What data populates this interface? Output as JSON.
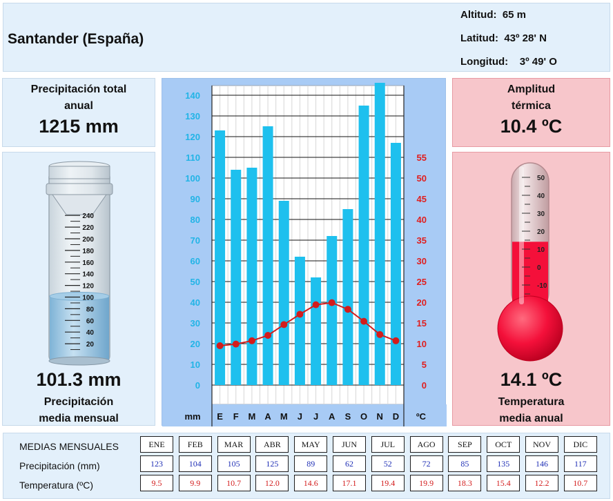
{
  "station": {
    "name": "Santander (España)",
    "altitude": "Altitud:  65 m",
    "latitude": "Latitud:  43º 28' N",
    "longitude": "Longitud:    3º 49' O"
  },
  "precip_total": {
    "title_line1": "Precipitación total",
    "title_line2": "anual",
    "value": "1215 mm"
  },
  "precip_mean": {
    "value": "101.3 mm",
    "label_line1": "Precipitación",
    "label_line2": "media mensual",
    "gauge_ticks": [
      "240",
      "220",
      "200",
      "180",
      "160",
      "140",
      "120",
      "100",
      "80",
      "60",
      "40",
      "20"
    ],
    "fill_value_mm": 101.3
  },
  "amplitude": {
    "title_line1": "Amplitud",
    "title_line2": "térmica",
    "value": "10.4 ºC"
  },
  "temp_mean": {
    "value": "14.1 ºC",
    "label_line1": "Temperatura",
    "label_line2": "media anual",
    "thermo_ticks": [
      "50",
      "40",
      "30",
      "20",
      "10",
      "0",
      "-10"
    ],
    "fill_value_c": 14.1
  },
  "colors": {
    "bar": "#1ec0ee",
    "line": "#d31c1c",
    "left_axis": "#22b4e6",
    "right_axis": "#e01e1e",
    "thermo_fill": "#f4103a"
  },
  "chart_data": {
    "type": "bar",
    "categories": [
      "E",
      "F",
      "M",
      "A",
      "M",
      "J",
      "J",
      "A",
      "S",
      "O",
      "N",
      "D"
    ],
    "series": [
      {
        "values": [
          123,
          104,
          105,
          125,
          89,
          62,
          52,
          72,
          85,
          135,
          146,
          117
        ]
      },
      {
        "values": [
          9.5,
          9.9,
          10.7,
          12.0,
          14.6,
          17.1,
          19.4,
          19.9,
          18.3,
          15.4,
          12.2,
          10.7
        ]
      }
    ],
    "ylabel": "mm",
    "y2label": "ºC",
    "ylim": [
      0,
      145
    ],
    "y2lim": [
      0,
      72.5
    ],
    "yticks": [
      "0",
      "10",
      "20",
      "30",
      "40",
      "50",
      "60",
      "70",
      "80",
      "90",
      "100",
      "110",
      "120",
      "130",
      "140"
    ],
    "y2ticks": [
      "0",
      "5",
      "10",
      "15",
      "20",
      "25",
      "30",
      "35",
      "40",
      "45",
      "50",
      "55"
    ],
    "grid": true
  },
  "table": {
    "title": "MEDIAS MENSUALES",
    "precip_label": "Precipitación (mm)",
    "temp_label": "Temperatura (ºC)",
    "months": [
      "ENE",
      "FEB",
      "MAR",
      "ABR",
      "MAY",
      "JUN",
      "JUL",
      "AGO",
      "SEP",
      "OCT",
      "NOV",
      "DIC"
    ],
    "precip": [
      "123",
      "104",
      "105",
      "125",
      "89",
      "62",
      "52",
      "72",
      "85",
      "135",
      "146",
      "117"
    ],
    "temp": [
      "9.5",
      "9.9",
      "10.7",
      "12.0",
      "14.6",
      "17.1",
      "19.4",
      "19.9",
      "18.3",
      "15.4",
      "12.2",
      "10.7"
    ]
  }
}
